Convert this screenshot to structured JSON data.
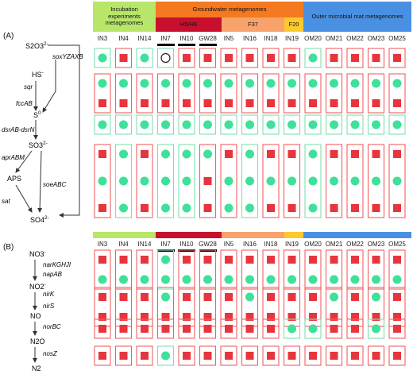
{
  "panel_labels": {
    "a": "(A)",
    "b": "(B)"
  },
  "headers": {
    "incubation": "Incubation experiments metagenomes",
    "groundwater": "Groundwater metagenomes",
    "outer_mat": "Outer microbial mat metagenomes",
    "h5": "H5/H6",
    "f37": "F37",
    "f20": "F20"
  },
  "colors": {
    "incubation": "#b7e66a",
    "groundwater": "#f47920",
    "outer_mat": "#4a90e2",
    "h5": "#c8102e",
    "f37": "#f8a36c",
    "f20": "#fdca2e",
    "present_square": "#e8353d",
    "present_circle": "#3ee09a",
    "box_red": "#f06060",
    "box_green": "#7de0b0"
  },
  "columns": [
    "IN3",
    "IN4",
    "IN14",
    "IN7",
    "IN10",
    "GW28",
    "IN5",
    "IN16",
    "IN18",
    "IN19",
    "OM20",
    "OM21",
    "OM22",
    "OM23",
    "OM25"
  ],
  "underlined_columns": [
    "IN7",
    "IN10",
    "GW28"
  ],
  "sulfur_pathway": {
    "compounds": {
      "s2o3": "S2O3",
      "s2o3_sup": "2-",
      "hs": "HS",
      "hs_sup": "-",
      "s0": "S",
      "s0_sup": "0",
      "so3": "SO3",
      "so3_sup": "2-",
      "aps": "APS",
      "so4": "SO4",
      "so4_sup": "2-"
    },
    "genes": {
      "sox": "soxYZAXB",
      "sqr": "sqr",
      "fcc": "fccAB",
      "dsr": "dsrAB-dsrN",
      "apr": "aprABM",
      "soe": "soeABC",
      "sat": "sat"
    }
  },
  "nitrogen_pathway": {
    "compounds": {
      "no3": "NO3",
      "no3_sup": "-",
      "no2": "NO2",
      "no2_sup": "-",
      "no": "NO",
      "n2o": "N2O",
      "n2": "N2"
    },
    "genes": {
      "nar": "narKGHJI",
      "nap": "napAB",
      "nirk": "nirK",
      "nirs": "nirS",
      "nor": "norBC",
      "nos": "nosZ"
    }
  },
  "grid_a": [
    {
      "groups": [
        [
          "C"
        ],
        [
          "S"
        ],
        [
          "C"
        ],
        [
          "O"
        ],
        [
          "S"
        ],
        [
          "S"
        ],
        [
          "S"
        ],
        [
          "S"
        ],
        [
          "S"
        ],
        [
          "S"
        ],
        [
          "C"
        ],
        [
          "S"
        ],
        [
          "S"
        ],
        [
          "S"
        ],
        [
          "S"
        ]
      ]
    },
    {
      "groups": [
        [
          "C",
          "S"
        ],
        [
          "C",
          "S"
        ],
        [
          "C",
          "S"
        ],
        [
          "C",
          "S"
        ],
        [
          "C",
          "S"
        ],
        [
          "C",
          "S"
        ],
        [
          "C",
          "S"
        ],
        [
          "C",
          "S"
        ],
        [
          "C",
          "S"
        ],
        [
          "C",
          "S"
        ],
        [
          "C",
          "S"
        ],
        [
          "C",
          "S"
        ],
        [
          "C",
          "S"
        ],
        [
          "C",
          "S"
        ],
        [
          "C",
          "S"
        ]
      ]
    },
    {
      "groups": [
        [
          "C"
        ],
        [
          "C"
        ],
        [
          "C"
        ],
        [
          "C"
        ],
        [
          "C"
        ],
        [
          "C"
        ],
        [
          "C"
        ],
        [
          "C"
        ],
        [
          "C"
        ],
        [
          "C"
        ],
        [
          "C"
        ],
        [
          "C"
        ],
        [
          "C"
        ],
        [
          "C"
        ],
        [
          "C"
        ]
      ]
    },
    {
      "groups": [
        [
          "S",
          "C",
          "S"
        ],
        [
          "C",
          "C",
          "C"
        ],
        [
          "S",
          "C",
          "S"
        ],
        [
          "C",
          "C",
          "C"
        ],
        [
          "C",
          "C",
          "C"
        ],
        [
          "C",
          "S",
          "S"
        ],
        [
          "S",
          "C",
          "C"
        ],
        [
          "C",
          "C",
          "C"
        ],
        [
          "S",
          "C",
          "S"
        ],
        [
          "S",
          "C",
          "S"
        ],
        [
          "C",
          "C",
          "C"
        ],
        [
          "S",
          "C",
          "S"
        ],
        [
          "S",
          "C",
          "S"
        ],
        [
          "S",
          "C",
          "S"
        ],
        [
          "S",
          "C",
          "S"
        ]
      ]
    }
  ],
  "grid_b": [
    {
      "groups": [
        [
          "S",
          "C"
        ],
        [
          "S",
          "C"
        ],
        [
          "S",
          "C"
        ],
        [
          "C",
          "C"
        ],
        [
          "S",
          "C"
        ],
        [
          "S",
          "C"
        ],
        [
          "S",
          "C"
        ],
        [
          "S",
          "C"
        ],
        [
          "S",
          "C"
        ],
        [
          "S",
          "C"
        ],
        [
          "S",
          "C"
        ],
        [
          "S",
          "C"
        ],
        [
          "S",
          "C"
        ],
        [
          "S",
          "C"
        ],
        [
          "S",
          "C"
        ]
      ]
    },
    {
      "groups": [
        [
          "S",
          "S"
        ],
        [
          "S",
          "S"
        ],
        [
          "S",
          "S"
        ],
        [
          "C",
          "S"
        ],
        [
          "S",
          "S"
        ],
        [
          "S",
          "S"
        ],
        [
          "S",
          "S"
        ],
        [
          "C",
          "S"
        ],
        [
          "S",
          "S"
        ],
        [
          "S",
          "S"
        ],
        [
          "S",
          "S"
        ],
        [
          "C",
          "S"
        ],
        [
          "S",
          "S"
        ],
        [
          "C",
          "S"
        ],
        [
          "S",
          "S"
        ]
      ]
    },
    {
      "groups": [
        [
          "S"
        ],
        [
          "S"
        ],
        [
          "S"
        ],
        [
          "S"
        ],
        [
          "S"
        ],
        [
          "S"
        ],
        [
          "S"
        ],
        [
          "S"
        ],
        [
          "S"
        ],
        [
          "C"
        ],
        [
          "C"
        ],
        [
          "S"
        ],
        [
          "S"
        ],
        [
          "C"
        ],
        [
          "S"
        ]
      ]
    },
    {
      "groups": [
        [
          "S"
        ],
        [
          "S"
        ],
        [
          "S"
        ],
        [
          "C"
        ],
        [
          "S"
        ],
        [
          "S"
        ],
        [
          "S"
        ],
        [
          "S"
        ],
        [
          "S"
        ],
        [
          "S"
        ],
        [
          "S"
        ],
        [
          "S"
        ],
        [
          "S"
        ],
        [
          "S"
        ],
        [
          "S"
        ]
      ]
    }
  ]
}
